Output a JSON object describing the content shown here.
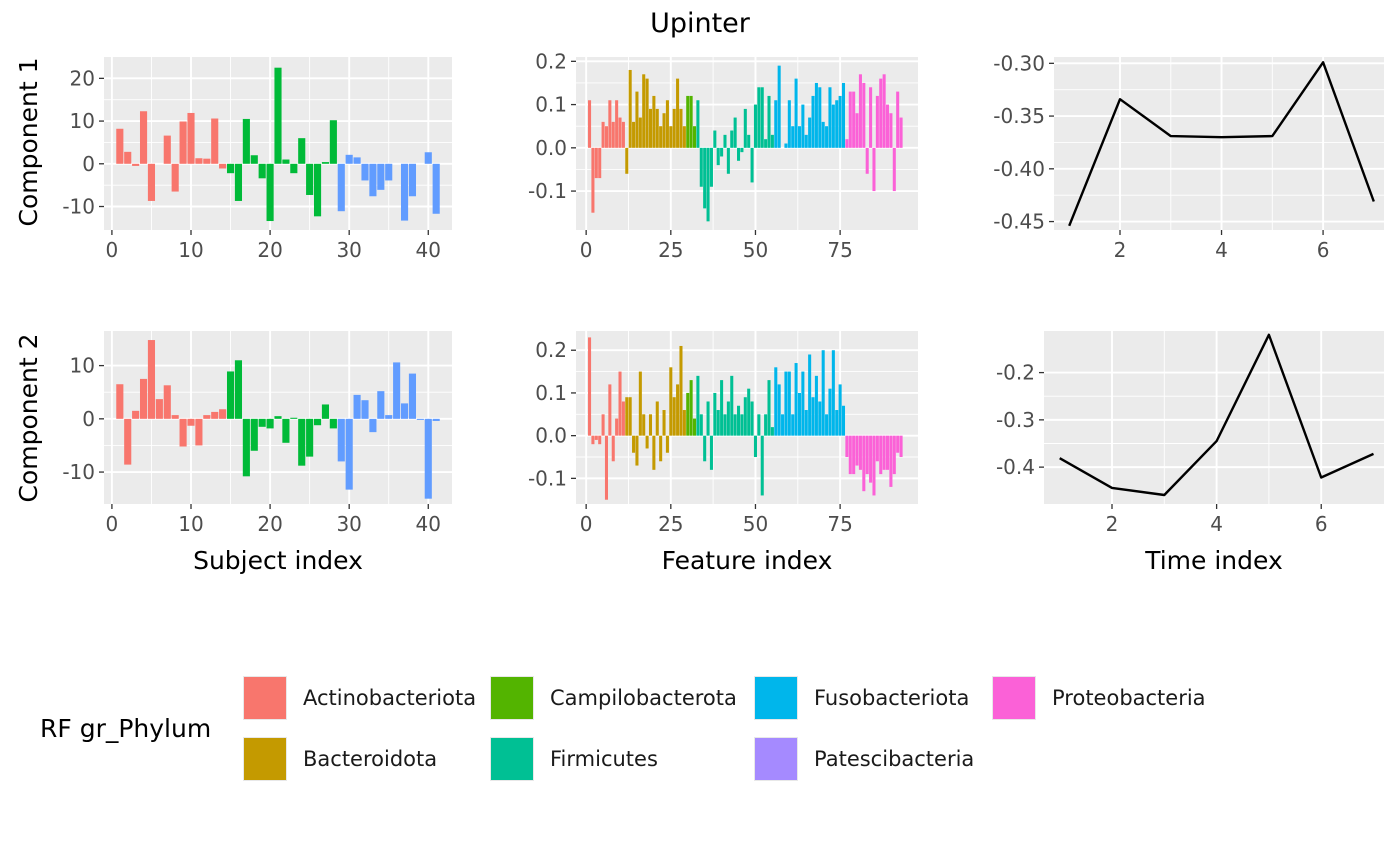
{
  "chart_data": {
    "type": "bar",
    "title": "Upinter",
    "row_labels": [
      "Component 1",
      "Component 2"
    ],
    "x_labels": [
      "Subject index",
      "Feature index",
      "Time index"
    ],
    "grid": true,
    "legend_placement": "bottom",
    "legend": {
      "title": "RF gr_Phylum",
      "entries": [
        {
          "name": "Actinobacteriota",
          "color": "#F8766D"
        },
        {
          "name": "Bacteroidota",
          "color": "#C49A00"
        },
        {
          "name": "Campilobacterota",
          "color": "#53B400"
        },
        {
          "name": "Firmicutes",
          "color": "#00C094"
        },
        {
          "name": "Fusobacteriota",
          "color": "#00B6EB"
        },
        {
          "name": "Patescibacteria",
          "color": "#A58AFF"
        },
        {
          "name": "Proteobacteria",
          "color": "#FB61D7"
        }
      ]
    },
    "panels": [
      {
        "id": "c1-subject",
        "type": "bar",
        "xlim": [
          -1,
          43
        ],
        "ylim": [
          -15.5,
          25
        ],
        "xticks": [
          0,
          10,
          20,
          30,
          40
        ],
        "yticks": [
          -10,
          0,
          10,
          20
        ],
        "ytick_labels": [
          "-10",
          "0",
          "10",
          "20"
        ],
        "groups": [
          {
            "color": "#F8766D",
            "x": [
              1,
              2,
              3,
              4,
              5,
              6,
              7,
              8,
              9,
              10,
              11,
              12,
              13,
              14
            ],
            "values": [
              8.2,
              2.8,
              -0.5,
              12.3,
              -8.7,
              0,
              6.6,
              -6.5,
              9.9,
              11.9,
              1.3,
              1.2,
              10.6,
              -1.1
            ]
          },
          {
            "color": "#00BA38",
            "x": [
              15,
              16,
              17,
              18,
              19,
              20,
              21,
              22,
              23,
              24,
              25,
              26,
              27,
              28
            ],
            "values": [
              -2.2,
              -8.7,
              10.5,
              2.0,
              -3.4,
              -13.4,
              22.5,
              1.0,
              -2.2,
              6.0,
              -7.3,
              -12.3,
              0.4,
              10.2
            ]
          },
          {
            "color": "#619CFF",
            "x": [
              29,
              30,
              31,
              32,
              33,
              34,
              35,
              36,
              37,
              38,
              39,
              40,
              41
            ],
            "values": [
              -11.1,
              2.1,
              1.5,
              -3.9,
              -7.6,
              -6.1,
              -3.9,
              0,
              -13.3,
              -7.6,
              0,
              2.7,
              -11.7
            ]
          }
        ]
      },
      {
        "id": "c1-feature",
        "type": "bar",
        "xlim": [
          -3,
          98
        ],
        "ylim": [
          -0.19,
          0.21
        ],
        "xticks": [
          0,
          25,
          50,
          75
        ],
        "yticks": [
          -0.1,
          0.0,
          0.1,
          0.2
        ],
        "ytick_labels": [
          "-0.1",
          "0.0",
          "0.1",
          "0.2"
        ],
        "groups": [
          {
            "color": "#F8766D",
            "x": [
              1,
              2,
              3,
              4,
              5,
              6,
              7,
              8,
              9,
              10,
              11
            ],
            "values": [
              0.11,
              -0.15,
              -0.07,
              -0.07,
              0.06,
              0.05,
              0.11,
              0.06,
              0.11,
              0.07,
              0.06
            ]
          },
          {
            "color": "#C49A00",
            "x": [
              12,
              13,
              14,
              15,
              16,
              17,
              18,
              19,
              20,
              21,
              22,
              23,
              24,
              25,
              26,
              27,
              28,
              29
            ],
            "values": [
              -0.06,
              0.18,
              0.06,
              0.13,
              0.07,
              0.17,
              0.16,
              0.09,
              0.12,
              0.09,
              0.05,
              0.08,
              0.11,
              0.05,
              0.09,
              0.16,
              0.09,
              0.05
            ]
          },
          {
            "color": "#53B400",
            "x": [
              30,
              31,
              32
            ],
            "values": [
              0.12,
              0.12,
              0.05
            ]
          },
          {
            "color": "#00C094",
            "x": [
              33,
              34,
              35,
              36,
              37,
              38,
              39,
              40,
              41,
              42,
              43,
              44,
              45,
              46,
              47,
              48,
              49,
              50,
              51,
              52,
              53,
              54,
              55
            ],
            "values": [
              0.11,
              -0.09,
              -0.14,
              -0.17,
              -0.09,
              0.04,
              -0.04,
              -0.02,
              0.03,
              -0.06,
              0.04,
              0.07,
              -0.03,
              -0.01,
              0.09,
              0.03,
              -0.08,
              0.1,
              0.14,
              0.14,
              0.02,
              0.12,
              0.03
            ]
          },
          {
            "color": "#00B6EB",
            "x": [
              56,
              57,
              58,
              59,
              60,
              61,
              62,
              63,
              64,
              65,
              66,
              67,
              68,
              69,
              70,
              71,
              72,
              73,
              74,
              75,
              76
            ],
            "values": [
              0.11,
              0.19,
              0.0,
              0.01,
              0.11,
              0.05,
              0.16,
              0.05,
              0.1,
              0.03,
              0.07,
              0.12,
              0.15,
              0.14,
              0.06,
              0.05,
              0.14,
              0.1,
              0.11,
              0.12,
              0.15
            ]
          },
          {
            "color": "#FB61D7",
            "x": [
              77,
              78,
              79,
              80,
              81,
              82,
              83,
              84,
              85,
              86,
              87,
              88,
              89,
              90,
              91,
              92,
              93
            ],
            "values": [
              0.02,
              0.13,
              0.13,
              0.08,
              0.17,
              0.15,
              -0.06,
              0.14,
              -0.1,
              0.12,
              0.16,
              0.17,
              0.1,
              0.08,
              -0.1,
              0.13,
              0.07
            ]
          }
        ]
      },
      {
        "id": "c1-time",
        "type": "line",
        "xlim": [
          0.7,
          7.2
        ],
        "ylim": [
          -0.458,
          -0.294
        ],
        "xticks": [
          2,
          4,
          6
        ],
        "yticks": [
          -0.45,
          -0.4,
          -0.35,
          -0.3
        ],
        "ytick_labels": [
          "-0.45",
          "-0.40",
          "-0.35",
          "-0.30"
        ],
        "line": {
          "color": "#000000",
          "x": [
            1,
            2,
            3,
            4,
            5,
            6,
            7
          ],
          "values": [
            -0.454,
            -0.334,
            -0.369,
            -0.37,
            -0.369,
            -0.299,
            -0.431
          ]
        }
      },
      {
        "id": "c2-subject",
        "type": "bar",
        "xlim": [
          -1,
          43
        ],
        "ylim": [
          -16,
          16.5
        ],
        "xticks": [
          0,
          10,
          20,
          30,
          40
        ],
        "yticks": [
          -10,
          0,
          10
        ],
        "ytick_labels": [
          "-10",
          "0",
          "10"
        ],
        "groups": [
          {
            "color": "#F8766D",
            "x": [
              1,
              2,
              3,
              4,
              5,
              6,
              7,
              8,
              9,
              10,
              11,
              12,
              13,
              14
            ],
            "values": [
              6.5,
              -8.6,
              1.5,
              7.5,
              14.8,
              3.7,
              6.3,
              0.7,
              -5.2,
              -1.3,
              -5.0,
              0.7,
              1.3,
              1.8
            ]
          },
          {
            "color": "#00BA38",
            "x": [
              15,
              16,
              17,
              18,
              19,
              20,
              21,
              22,
              23,
              24,
              25,
              26,
              27,
              28
            ],
            "values": [
              8.9,
              11.0,
              -10.8,
              -6.0,
              -1.5,
              -1.8,
              0.5,
              -4.5,
              0.2,
              -8.8,
              -7.1,
              -1.2,
              2.7,
              -1.8
            ]
          },
          {
            "color": "#619CFF",
            "x": [
              29,
              30,
              31,
              32,
              33,
              34,
              35,
              36,
              37,
              38,
              39,
              40,
              41
            ],
            "values": [
              -8.0,
              -13.3,
              4.5,
              3.5,
              -2.5,
              5.2,
              0.7,
              10.6,
              2.9,
              8.5,
              -0.2,
              -15.0,
              -0.4
            ]
          }
        ]
      },
      {
        "id": "c2-feature",
        "type": "bar",
        "xlim": [
          -3,
          98
        ],
        "ylim": [
          -0.16,
          0.245
        ],
        "xticks": [
          0,
          25,
          50,
          75
        ],
        "yticks": [
          -0.1,
          0.0,
          0.1,
          0.2
        ],
        "ytick_labels": [
          "-0.1",
          "0.0",
          "0.1",
          "0.2"
        ],
        "groups": [
          {
            "color": "#F8766D",
            "x": [
              1,
              2,
              3,
              4,
              5,
              6,
              7,
              8,
              9,
              10,
              11
            ],
            "values": [
              0.23,
              -0.02,
              -0.01,
              -0.02,
              0.05,
              -0.15,
              0.12,
              -0.06,
              0.04,
              0.15,
              0.08
            ]
          },
          {
            "color": "#C49A00",
            "x": [
              12,
              13,
              14,
              15,
              16,
              17,
              18,
              19,
              20,
              21,
              22,
              23,
              24,
              25,
              26,
              27,
              28,
              29
            ],
            "values": [
              0.09,
              0.09,
              -0.04,
              -0.07,
              0.15,
              0.05,
              -0.03,
              0.05,
              -0.08,
              0.08,
              -0.06,
              0.06,
              -0.04,
              0.16,
              0.09,
              0.12,
              0.21,
              0.06
            ]
          },
          {
            "color": "#53B400",
            "x": [
              30,
              31,
              32
            ],
            "values": [
              0.1,
              0.13,
              0.04
            ]
          },
          {
            "color": "#00C094",
            "x": [
              33,
              34,
              35,
              36,
              37,
              38,
              39,
              40,
              41,
              42,
              43,
              44,
              45,
              46,
              47,
              48,
              49,
              50,
              51,
              52,
              53,
              54,
              55
            ],
            "values": [
              0.14,
              0.05,
              -0.06,
              0.08,
              -0.08,
              0.1,
              0.06,
              0.13,
              0.05,
              0.08,
              0.14,
              0.05,
              0.07,
              0.05,
              0.09,
              0.11,
              0.08,
              -0.05,
              0.05,
              -0.14,
              0.05,
              0.13,
              0.02
            ]
          },
          {
            "color": "#00B6EB",
            "x": [
              56,
              57,
              58,
              59,
              60,
              61,
              62,
              63,
              64,
              65,
              66,
              67,
              68,
              69,
              70,
              71,
              72,
              73,
              74,
              75,
              76
            ],
            "values": [
              0.16,
              0.12,
              0.05,
              0.15,
              0.15,
              0.05,
              0.17,
              0.1,
              0.15,
              0.06,
              0.19,
              0.09,
              0.14,
              0.08,
              0.2,
              0.05,
              0.11,
              0.2,
              0.06,
              0.12,
              0.07
            ]
          },
          {
            "color": "#FB61D7",
            "x": [
              77,
              78,
              79,
              80,
              81,
              82,
              83,
              84,
              85,
              86,
              87,
              88,
              89,
              90,
              91,
              92,
              93
            ],
            "values": [
              -0.05,
              -0.09,
              -0.09,
              -0.07,
              -0.08,
              -0.13,
              -0.09,
              -0.11,
              -0.14,
              -0.06,
              -0.09,
              -0.08,
              -0.08,
              -0.12,
              -0.09,
              -0.04,
              -0.05
            ]
          }
        ]
      },
      {
        "id": "c2-time",
        "type": "line",
        "xlim": [
          0.7,
          7.2
        ],
        "ylim": [
          -0.478,
          -0.112
        ],
        "xticks": [
          2,
          4,
          6
        ],
        "yticks": [
          -0.4,
          -0.3,
          -0.2
        ],
        "ytick_labels": [
          "-0.4",
          "-0.3",
          "-0.2"
        ],
        "line": {
          "color": "#000000",
          "x": [
            1,
            2,
            3,
            4,
            5,
            6,
            7
          ],
          "values": [
            -0.381,
            -0.444,
            -0.459,
            -0.345,
            -0.12,
            -0.422,
            -0.372
          ]
        }
      }
    ]
  }
}
